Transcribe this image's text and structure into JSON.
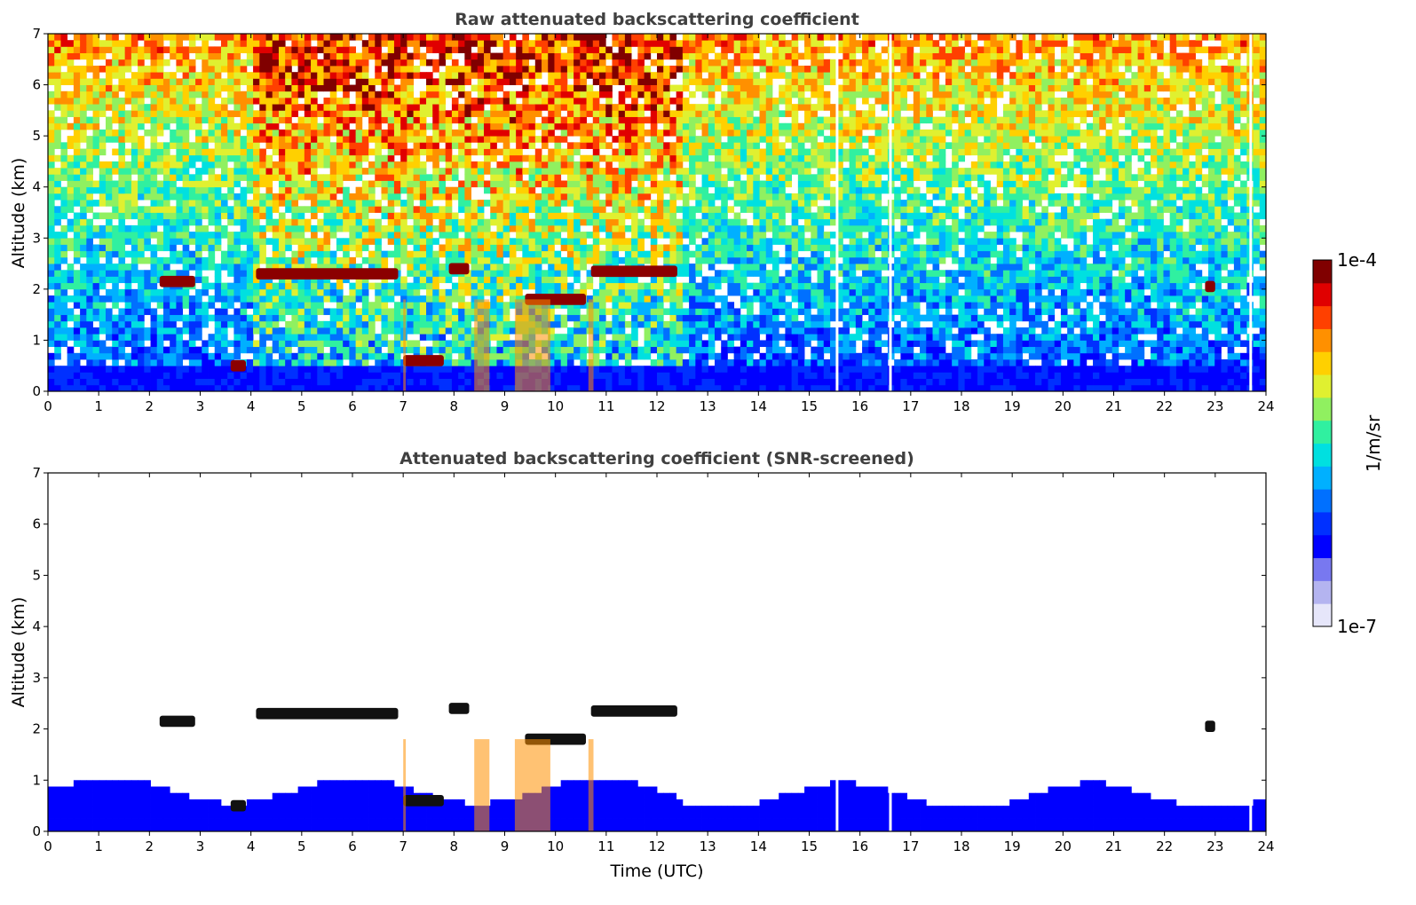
{
  "chart_data": [
    {
      "type": "heatmap",
      "title": "Raw attenuated backscattering coefficient",
      "xlabel": "",
      "ylabel": "Altitude (km)",
      "xlim": [
        0,
        24
      ],
      "ylim": [
        0,
        7
      ],
      "xticks": [
        "0",
        "1",
        "2",
        "3",
        "4",
        "5",
        "6",
        "7",
        "8",
        "9",
        "10",
        "11",
        "12",
        "13",
        "14",
        "15",
        "16",
        "17",
        "18",
        "19",
        "20",
        "21",
        "22",
        "23",
        "24"
      ],
      "yticks": [
        "0",
        "1",
        "2",
        "3",
        "4",
        "5",
        "6",
        "7"
      ],
      "screened": false,
      "layers": [
        {
          "x": [
            2.2,
            2.9
          ],
          "y": 2.15
        },
        {
          "x": [
            4.1,
            6.9
          ],
          "y": 2.3
        },
        {
          "x": [
            7.9,
            8.3
          ],
          "y": 2.4
        },
        {
          "x": [
            9.4,
            10.6
          ],
          "y": 1.8
        },
        {
          "x": [
            10.7,
            12.4
          ],
          "y": 2.35
        },
        {
          "x": [
            7.0,
            7.8
          ],
          "y": 0.6
        },
        {
          "x": [
            3.6,
            3.9
          ],
          "y": 0.5
        },
        {
          "x": [
            22.8,
            23.0
          ],
          "y": 2.05
        }
      ],
      "gaps": [
        15.55,
        16.6,
        23.7
      ]
    },
    {
      "type": "heatmap",
      "title": "Attenuated backscattering coefficient (SNR-screened)",
      "xlabel": "Time (UTC)",
      "ylabel": "Altitude (km)",
      "xlim": [
        0,
        24
      ],
      "ylim": [
        0,
        7
      ],
      "xticks": [
        "0",
        "1",
        "2",
        "3",
        "4",
        "5",
        "6",
        "7",
        "8",
        "9",
        "10",
        "11",
        "12",
        "13",
        "14",
        "15",
        "16",
        "17",
        "18",
        "19",
        "20",
        "21",
        "22",
        "23",
        "24"
      ],
      "yticks": [
        "0",
        "1",
        "2",
        "3",
        "4",
        "5",
        "6",
        "7"
      ],
      "screened": true,
      "layers": [
        {
          "x": [
            2.2,
            2.9
          ],
          "y": 2.15
        },
        {
          "x": [
            4.1,
            6.9
          ],
          "y": 2.3
        },
        {
          "x": [
            7.9,
            8.3
          ],
          "y": 2.4
        },
        {
          "x": [
            9.4,
            10.6
          ],
          "y": 1.8
        },
        {
          "x": [
            10.7,
            12.4
          ],
          "y": 2.35
        },
        {
          "x": [
            7.0,
            7.8
          ],
          "y": 0.6
        },
        {
          "x": [
            3.6,
            3.9
          ],
          "y": 0.5
        },
        {
          "x": [
            22.8,
            23.0
          ],
          "y": 2.05
        }
      ],
      "gaps": [
        15.55,
        16.6,
        23.7
      ]
    }
  ],
  "colorbar": {
    "label": "1/m/sr",
    "max_label": "1e-4",
    "min_label": "1e-7",
    "colors": [
      "#e6e6fa",
      "#b4b4f0",
      "#7878f0",
      "#0000ff",
      "#0030ff",
      "#0070ff",
      "#00b0ff",
      "#00e0e0",
      "#30f0a0",
      "#90f060",
      "#e0f030",
      "#ffd000",
      "#ff9000",
      "#ff4000",
      "#e00000",
      "#800000"
    ]
  }
}
